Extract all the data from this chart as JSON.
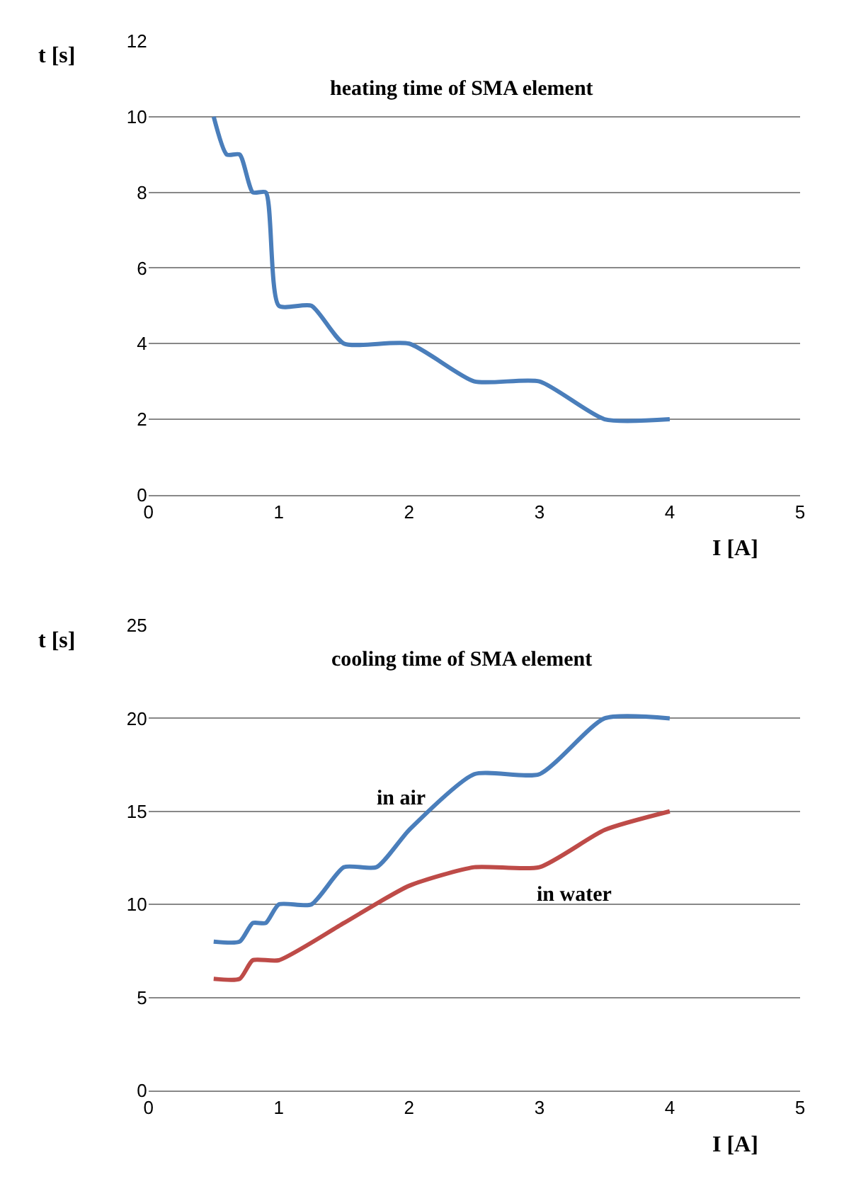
{
  "chart_data": [
    {
      "type": "line",
      "xlabel": "I [A]",
      "ylabel": "t [s]",
      "annotations": [
        "heating time of SMA element"
      ],
      "x": [
        0.5,
        0.6,
        0.7,
        0.8,
        0.9,
        1,
        1.25,
        1.5,
        2,
        2.5,
        3,
        3.5,
        4
      ],
      "series": [
        {
          "color": "#4a7ebb",
          "values": [
            10,
            9,
            9,
            8,
            8,
            5,
            5,
            4,
            4,
            3,
            3,
            2,
            2
          ]
        }
      ],
      "xlim": [
        0,
        5
      ],
      "xticks": [
        0,
        1,
        2,
        3,
        4,
        5
      ],
      "ylim": [
        0,
        12
      ],
      "yticks": [
        0,
        2,
        4,
        6,
        8,
        10,
        12
      ],
      "grid": "y",
      "marker": "none"
    },
    {
      "type": "line",
      "xlabel": "I [A]",
      "ylabel": "t [s]",
      "annotations": [
        "cooling time of SMA element"
      ],
      "xlim": [
        0,
        5
      ],
      "xticks": [
        0,
        1,
        2,
        3,
        4,
        5
      ],
      "ylim": [
        0,
        25
      ],
      "yticks": [
        0,
        5,
        10,
        15,
        20,
        25
      ],
      "grid": "y",
      "marker": "none",
      "series": [
        {
          "name": "in air",
          "color": "#4a7ebb",
          "x": [
            0.5,
            0.7,
            0.8,
            0.9,
            1,
            1.25,
            1.5,
            1.75,
            2,
            2.5,
            3,
            3.5,
            4
          ],
          "values": [
            8,
            8,
            9,
            9,
            10,
            10,
            12,
            12,
            14,
            17,
            17,
            20,
            20
          ]
        },
        {
          "name": "in water",
          "color": "#be4b48",
          "x": [
            0.5,
            0.7,
            0.8,
            1,
            1.5,
            2,
            2.5,
            3,
            3.5,
            4
          ],
          "values": [
            6,
            6,
            7,
            7,
            9,
            11,
            12,
            12,
            14,
            15
          ]
        }
      ]
    }
  ]
}
